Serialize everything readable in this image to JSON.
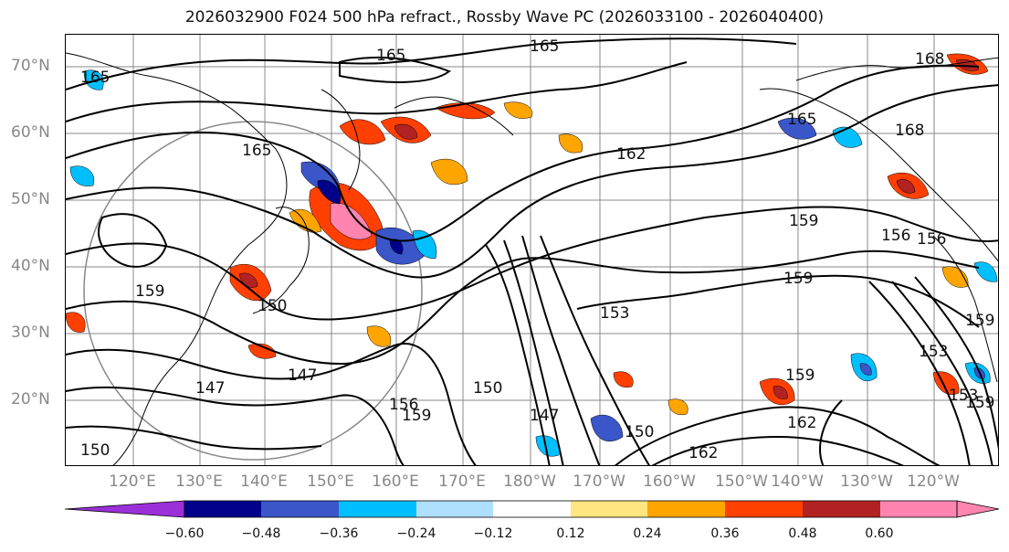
{
  "title": "2026032900 F024 500 hPa refract., Rossby Wave PC (2026033100 - 2026040400)",
  "latitude_labels": [
    "70°N",
    "60°N",
    "50°N",
    "40°N",
    "30°N",
    "20°N"
  ],
  "longitude_labels": [
    "120°E",
    "130°E",
    "140°E",
    "150°E",
    "160°E",
    "170°E",
    "180°W",
    "170°W",
    "160°W",
    "150°W",
    "140°W",
    "130°W",
    "120°W"
  ],
  "colorbar": {
    "tick_labels": [
      "−0.60",
      "−0.48",
      "−0.36",
      "−0.24",
      "−0.12",
      "0.12",
      "0.24",
      "0.36",
      "0.48",
      "0.60"
    ],
    "colors": [
      "#9b30d9",
      "#00008b",
      "#3a56c8",
      "#00bfff",
      "#b0e0ff",
      "#ffffff",
      "#ffe680",
      "#ffa500",
      "#ff4000",
      "#b22222",
      "#ff85b0"
    ]
  },
  "contour_labels": [
    "165",
    "165",
    "165",
    "165",
    "168",
    "165",
    "162",
    "168",
    "159",
    "156",
    "156",
    "159",
    "159",
    "153",
    "159",
    "150",
    "147",
    "147",
    "156",
    "159",
    "150",
    "147",
    "150",
    "162",
    "159",
    "162",
    "153",
    "153",
    "159",
    "150"
  ],
  "colors": {
    "grid": "#888888",
    "contour": "#000000",
    "coast": "#000000",
    "circle": "#888888"
  }
}
